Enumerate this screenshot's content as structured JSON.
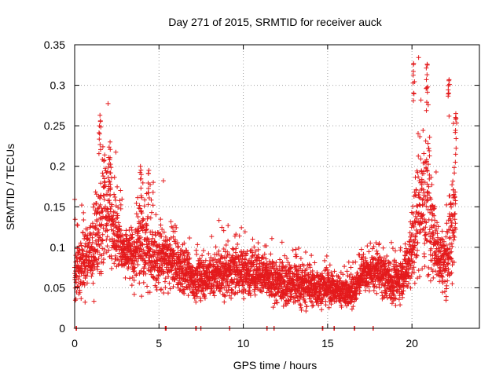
{
  "chart_data": {
    "type": "scatter",
    "title": "Day 271 of 2015, SRMTID for receiver auck",
    "xlabel": "GPS time / hours",
    "ylabel": "SRMTID / TECUs",
    "xlim": [
      0,
      24
    ],
    "ylim": [
      0,
      0.35
    ],
    "xticks": [
      0,
      5,
      10,
      15,
      20
    ],
    "xtick_labels": [
      "0",
      "5",
      "10",
      "15",
      "20"
    ],
    "yticks": [
      0,
      0.05,
      0.1,
      0.15,
      0.2,
      0.25,
      0.3,
      0.35
    ],
    "ytick_labels": [
      "0",
      "0.05",
      "0.1",
      "0.15",
      "0.2",
      "0.25",
      "0.3",
      "0.35"
    ],
    "grid": true,
    "marker": "+",
    "series": [
      {
        "name": "SRMTID",
        "color": "#e41a1c",
        "profile": [
          [
            0.0,
            0.07,
            0.03
          ],
          [
            0.5,
            0.085,
            0.03
          ],
          [
            1.0,
            0.09,
            0.03
          ],
          [
            1.5,
            0.13,
            0.06
          ],
          [
            2.0,
            0.15,
            0.05
          ],
          [
            2.5,
            0.11,
            0.03
          ],
          [
            3.0,
            0.095,
            0.025
          ],
          [
            3.5,
            0.09,
            0.025
          ],
          [
            4.0,
            0.11,
            0.04
          ],
          [
            4.5,
            0.09,
            0.03
          ],
          [
            5.0,
            0.085,
            0.03
          ],
          [
            5.5,
            0.08,
            0.03
          ],
          [
            6.0,
            0.08,
            0.03
          ],
          [
            6.5,
            0.07,
            0.025
          ],
          [
            7.0,
            0.06,
            0.02
          ],
          [
            8.0,
            0.065,
            0.02
          ],
          [
            9.0,
            0.07,
            0.025
          ],
          [
            10.0,
            0.07,
            0.025
          ],
          [
            11.0,
            0.065,
            0.02
          ],
          [
            12.0,
            0.055,
            0.02
          ],
          [
            13.0,
            0.055,
            0.02
          ],
          [
            14.0,
            0.05,
            0.02
          ],
          [
            15.0,
            0.05,
            0.015
          ],
          [
            16.0,
            0.045,
            0.015
          ],
          [
            16.5,
            0.045,
            0.015
          ],
          [
            17.0,
            0.065,
            0.015
          ],
          [
            18.0,
            0.07,
            0.02
          ],
          [
            19.0,
            0.055,
            0.02
          ],
          [
            19.5,
            0.065,
            0.02
          ],
          [
            20.0,
            0.1,
            0.04
          ],
          [
            20.5,
            0.16,
            0.07
          ],
          [
            21.0,
            0.15,
            0.07
          ],
          [
            21.5,
            0.09,
            0.03
          ],
          [
            22.0,
            0.08,
            0.03
          ],
          [
            22.5,
            0.14,
            0.06
          ],
          [
            22.6,
            0.15,
            0.06
          ]
        ],
        "notable_peaks": [
          {
            "x": 1.5,
            "y": 0.263
          },
          {
            "x": 2.1,
            "y": 0.23
          },
          {
            "x": 3.9,
            "y": 0.2
          },
          {
            "x": 4.4,
            "y": 0.195
          },
          {
            "x": 20.1,
            "y": 0.327
          },
          {
            "x": 20.9,
            "y": 0.326
          },
          {
            "x": 22.2,
            "y": 0.307
          },
          {
            "x": 22.6,
            "y": 0.265
          }
        ],
        "zero_values_x": [
          0.1,
          5.4,
          7.2,
          7.5,
          9.2,
          11.4,
          11.8,
          14.7,
          15.4,
          16.6,
          17.7
        ]
      }
    ]
  }
}
